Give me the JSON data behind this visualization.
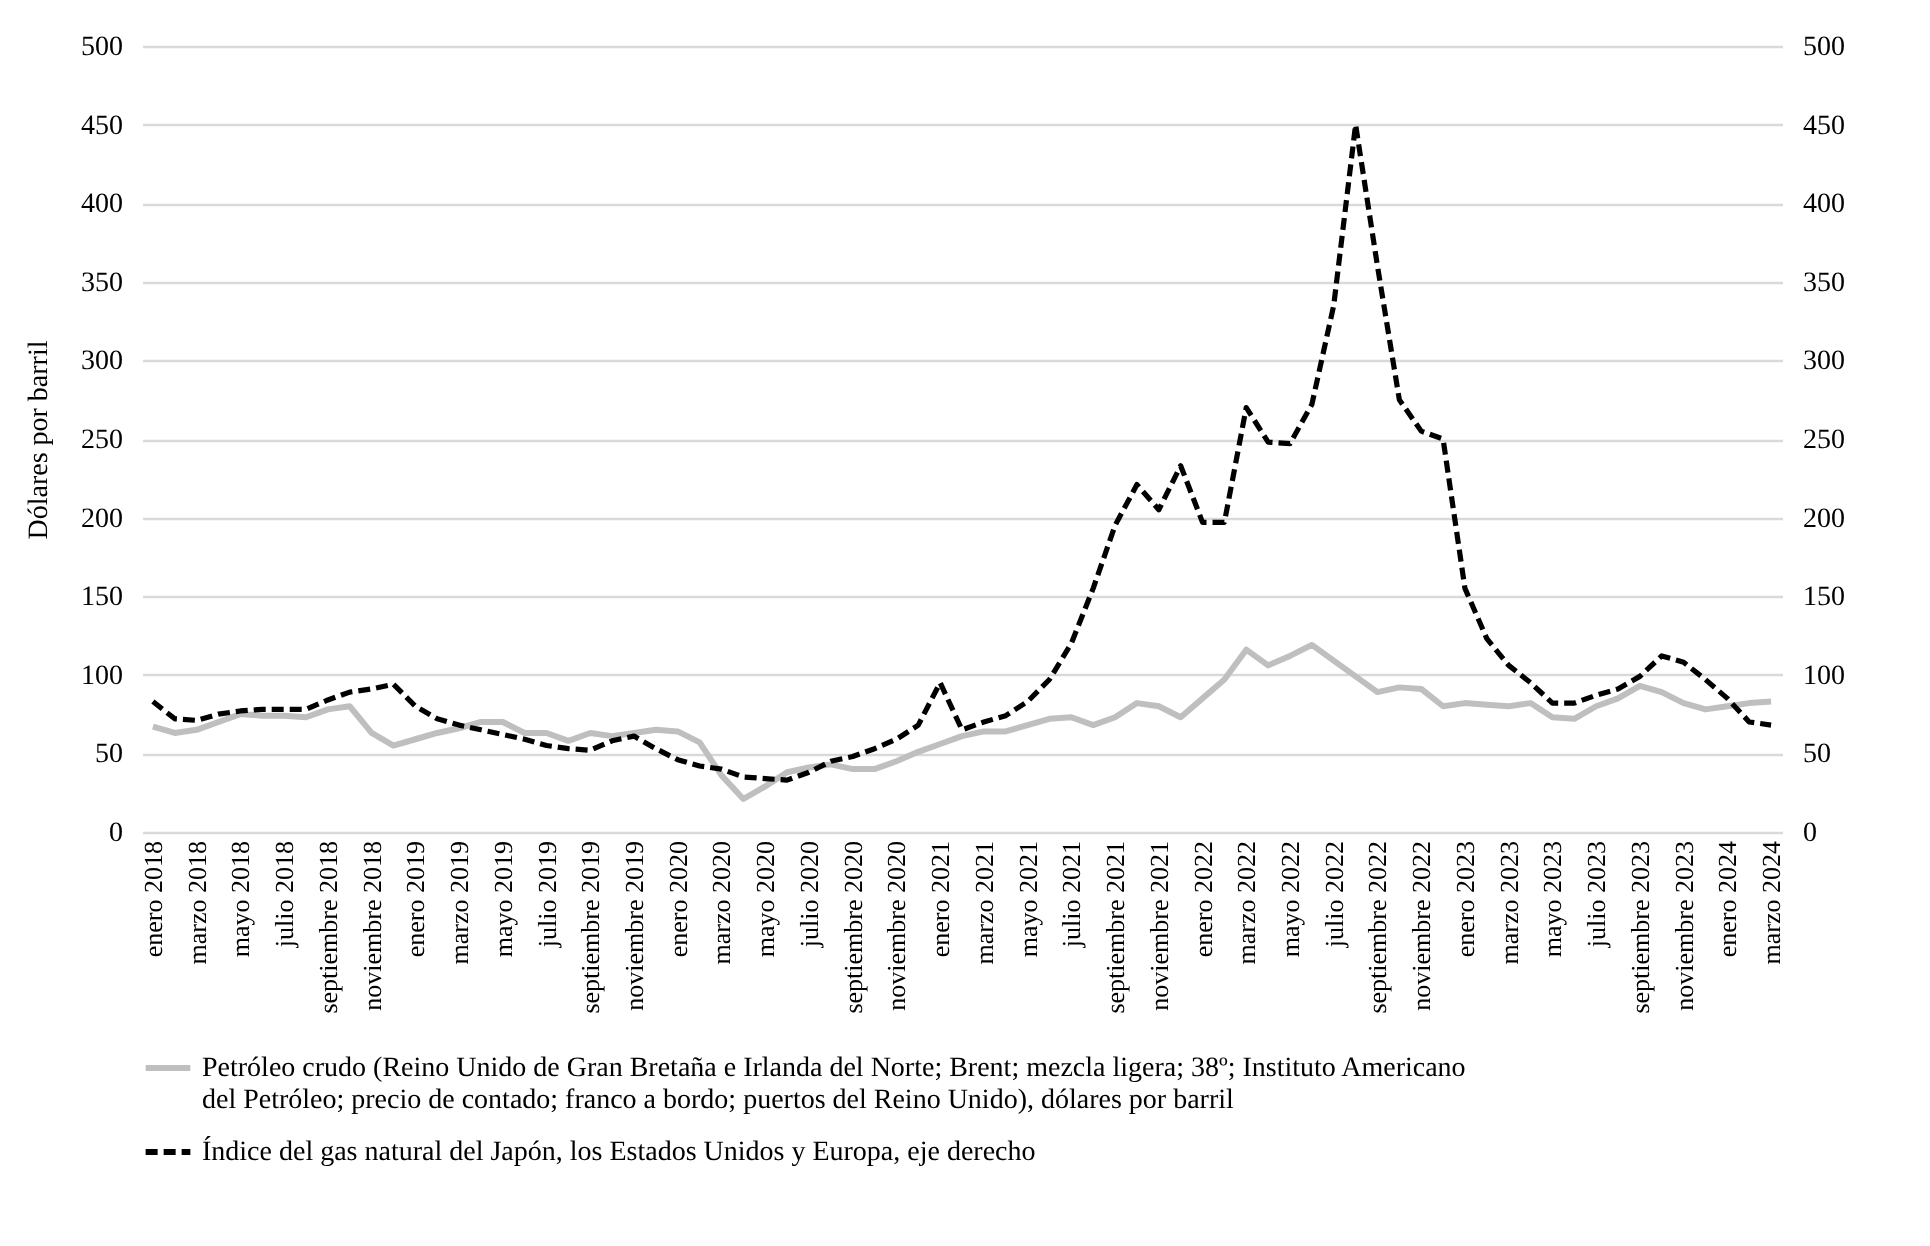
{
  "chart_data": {
    "type": "line",
    "ylabel": "Dólares por barril",
    "categories": [
      "enero 2018",
      null,
      "marzo 2018",
      null,
      "mayo 2018",
      null,
      "julio 2018",
      null,
      "septiembre 2018",
      null,
      "noviembre 2018",
      null,
      "enero 2019",
      null,
      "marzo 2019",
      null,
      "mayo 2019",
      null,
      "julio 2019",
      null,
      "septiembre 2019",
      null,
      "noviembre 2019",
      null,
      "enero 2020",
      null,
      "marzo 2020",
      null,
      "mayo 2020",
      null,
      "julio 2020",
      null,
      "septiembre 2020",
      null,
      "noviembre 2020",
      null,
      "enero 2021",
      null,
      "marzo 2021",
      null,
      "mayo 2021",
      null,
      "julio 2021",
      null,
      "septiembre 2021",
      null,
      "noviembre 2021",
      null,
      "enero 2022",
      null,
      "marzo 2022",
      null,
      "mayo 2022",
      null,
      "julio 2022",
      null,
      "septiembre 2022",
      null,
      "noviembre 2022",
      null,
      "enero 2023",
      null,
      "marzo 2023",
      null,
      "mayo 2023",
      null,
      "julio 2023",
      null,
      "septiembre 2023",
      null,
      "noviembre 2023",
      null,
      "enero 2024",
      null,
      "marzo 2024"
    ],
    "series": [
      {
        "name": "Petróleo crudo (Reino Unido de Gran Bretaña e Irlanda del Norte; Brent; mezcla ligera; 38º; Instituto Americano del Petróleo; precio de contado; franco a bordo; puertos del Reino Unido), dólares por barril",
        "color": "#bfbfbf",
        "line_style": "solid",
        "values": [
          67,
          63,
          65,
          70,
          75,
          74,
          74,
          73,
          78,
          80,
          63,
          55,
          59,
          63,
          66,
          70,
          70,
          63,
          63,
          58,
          63,
          61,
          63,
          65,
          64,
          57,
          36,
          21,
          29,
          38,
          41,
          43,
          40,
          40,
          45,
          51,
          56,
          61,
          64,
          64,
          68,
          72,
          73,
          68,
          73,
          82,
          80,
          73,
          85,
          97,
          116,
          106,
          112,
          119,
          109,
          99,
          89,
          92,
          91,
          80,
          82,
          81,
          80,
          82,
          73,
          72,
          80,
          85,
          93,
          89,
          82,
          78,
          80,
          82,
          83
        ]
      },
      {
        "name": "Índice del gas natural del Japón, los Estados Unidos y Europa, eje derecho",
        "color": "#000000",
        "line_style": "dashed",
        "axis": "y2",
        "values": [
          83,
          72,
          71,
          75,
          77,
          78,
          78,
          78,
          84,
          89,
          91,
          94,
          80,
          72,
          68,
          65,
          62,
          59,
          55,
          53,
          52,
          58,
          61,
          53,
          46,
          42,
          40,
          35,
          34,
          33,
          38,
          45,
          48,
          53,
          59,
          68,
          95,
          65,
          70,
          74,
          83,
          97,
          120,
          155,
          195,
          221,
          205,
          233,
          197,
          197,
          270,
          248,
          247,
          272,
          335,
          450,
          360,
          275,
          255,
          250,
          155,
          123,
          106,
          95,
          82,
          82,
          87,
          91,
          99,
          112,
          108,
          97,
          85,
          70,
          68
        ]
      }
    ],
    "ylim": [
      0,
      500
    ],
    "yticks": [
      0,
      50,
      100,
      150,
      200,
      250,
      300,
      350,
      400,
      450,
      500
    ],
    "y2lim": [
      0,
      500
    ],
    "y2ticks": [
      0,
      50,
      100,
      150,
      200,
      250,
      300,
      350,
      400,
      450,
      500
    ],
    "grid": "y",
    "legend": "bottom"
  }
}
